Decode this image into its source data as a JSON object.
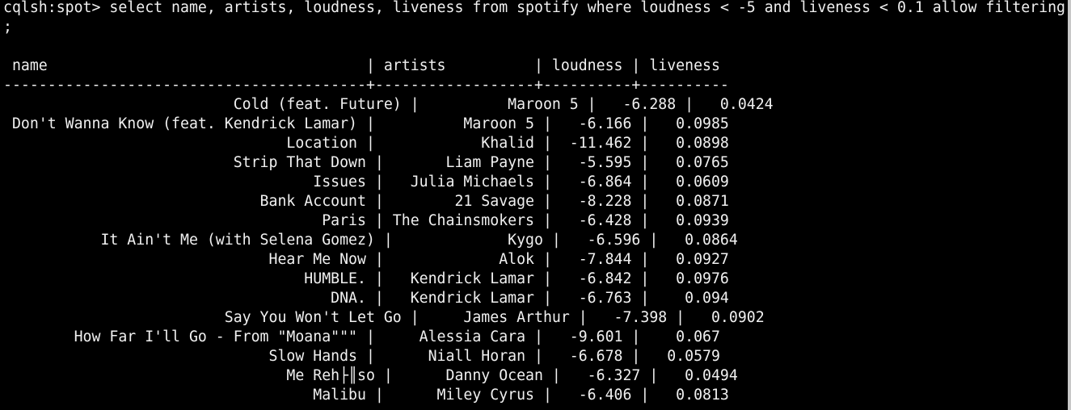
{
  "terminal": {
    "prompt": "cqlsh:spot> ",
    "command": "select name, artists, loudness, liveness from spotify where loudness < -5 and liveness < 0.1 allow filtering",
    "command_continuation": ";",
    "header": " name                                    | artists          | loudness | liveness",
    "separator": "-----------------------------------------+------------------+----------+----------",
    "rows": [
      "                          Cold (feat. Future) |          Maroon 5 |   -6.288 |   0.0424",
      " Don't Wanna Know (feat. Kendrick Lamar) |          Maroon 5 |   -6.166 |   0.0985",
      "                                Location |            Khalid |  -11.462 |   0.0898",
      "                          Strip That Down |       Liam Payne |   -5.595 |   0.0765",
      "                                   Issues |   Julia Michaels |   -6.864 |   0.0609",
      "                             Bank Account |        21 Savage |   -8.228 |   0.0871",
      "                                    Paris | The Chainsmokers |   -6.428 |   0.0939",
      "           It Ain't Me (with Selena Gomez) |             Kygo |   -6.596 |   0.0864",
      "                              Hear Me Now |             Alok |   -7.844 |   0.0927",
      "                                  HUMBLE. |   Kendrick Lamar |   -6.842 |   0.0976",
      "                                     DNA. |   Kendrick Lamar |   -6.763 |    0.094",
      "                         Say You Won't Let Go |     James Arthur |   -7.398 |   0.0902",
      "        How Far I'll Go - From \"Moana\"\"\" |     Alessia Cara |   -9.601 |    0.067",
      "                              Slow Hands |      Niall Horan |   -6.678 |   0.0579",
      "                                Me Reh├║so |      Danny Ocean |   -6.327 |   0.0494",
      "                                   Malibu |      Miley Cyrus |   -6.406 |   0.0813"
    ]
  }
}
